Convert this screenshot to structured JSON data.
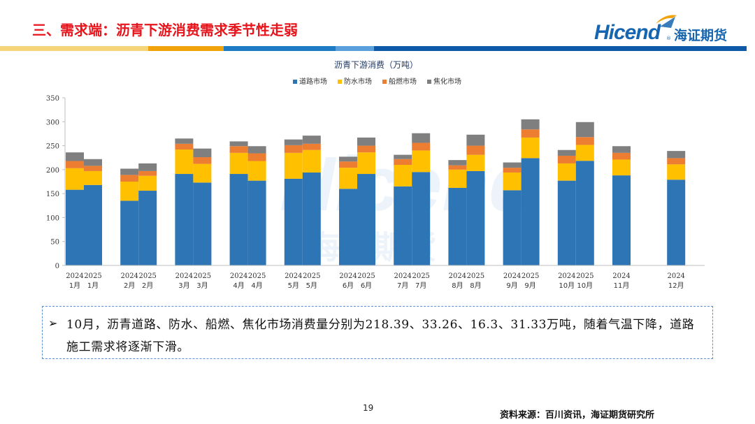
{
  "header": {
    "title": "三、需求端：沥青下游消费需求季节性走弱",
    "logo_en": "Hicend",
    "logo_cn": "海证期货",
    "logo_mark": "®"
  },
  "colors": {
    "title_red": "#e8141c",
    "stripe_yellow": "#f6d57a",
    "stripe_orange": "#f0a30a",
    "stripe_blue": "#1d7cc4",
    "stripe_navy": "#0f5aa8",
    "road": "#2e75b6",
    "waterproof": "#ffc000",
    "marine": "#ed7d31",
    "coking": "#7f7f7f"
  },
  "chart_data": {
    "type": "bar",
    "stacked": true,
    "title": "沥青下游消费（万吨）",
    "legend_position": "top",
    "ylim": [
      0,
      350
    ],
    "yticks": [
      0,
      50,
      100,
      150,
      200,
      250,
      300,
      350
    ],
    "grid": false,
    "categories": [
      [
        "2024",
        "1月"
      ],
      [
        "2025",
        "1月"
      ],
      [
        "2024",
        "2月"
      ],
      [
        "2025",
        "2月"
      ],
      [
        "2024",
        "3月"
      ],
      [
        "2025",
        "3月"
      ],
      [
        "2024",
        "4月"
      ],
      [
        "2025",
        "4月"
      ],
      [
        "2024",
        "5月"
      ],
      [
        "2025",
        "5月"
      ],
      [
        "2024",
        "6月"
      ],
      [
        "2025",
        "6月"
      ],
      [
        "2024",
        "7月"
      ],
      [
        "2025",
        "7月"
      ],
      [
        "2024",
        "8月"
      ],
      [
        "2025",
        "8月"
      ],
      [
        "2024",
        "9月"
      ],
      [
        "2025",
        "9月"
      ],
      [
        "2024",
        "10月"
      ],
      [
        "2025",
        "10月"
      ],
      [
        "2024",
        "11月"
      ],
      [
        "2024",
        "12月"
      ]
    ],
    "series": [
      {
        "name": "道路市场",
        "color": "#2e75b6",
        "values": [
          158,
          168,
          135,
          156,
          191,
          173,
          191,
          177,
          181,
          194,
          160,
          191,
          165,
          195,
          162,
          197,
          157,
          224,
          177,
          218.39,
          188,
          179
        ]
      },
      {
        "name": "防水市场",
        "color": "#ffc000",
        "values": [
          45,
          29,
          40,
          31,
          51,
          39,
          44,
          41,
          54,
          47,
          44,
          45,
          45,
          45,
          38,
          34,
          37,
          43,
          36,
          33.26,
          33,
          32
        ]
      },
      {
        "name": "船燃市场",
        "color": "#ed7d31",
        "values": [
          15,
          11,
          14,
          10,
          12,
          14,
          14,
          16,
          16,
          13,
          13,
          14,
          12,
          16,
          9,
          19,
          10,
          17,
          16,
          16.3,
          14,
          13
        ]
      },
      {
        "name": "焦化市场",
        "color": "#7f7f7f",
        "values": [
          18,
          14,
          13,
          16,
          11,
          18,
          10,
          15,
          12,
          17,
          10,
          17,
          9,
          20,
          11,
          23,
          11,
          21,
          12,
          31.33,
          14,
          15
        ]
      }
    ]
  },
  "note": {
    "bullet": "➢",
    "text": "10月，沥青道路、防水、船燃、焦化市场消费量分别为218.39、33.26、16.3、31.33万吨，随着气温下降，道路施工需求将逐渐下滑。"
  },
  "footer": {
    "page_number": "19",
    "source": "资料来源：百川资讯，海证期货研究所"
  },
  "watermark": {
    "en": "Hicend",
    "cn": "海证期货"
  }
}
